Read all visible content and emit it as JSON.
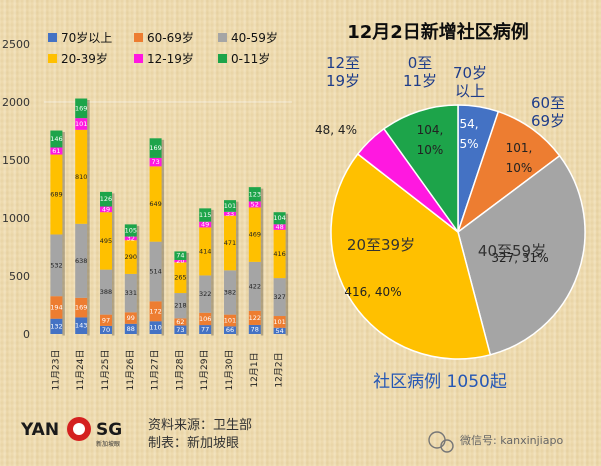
{
  "chart_data": [
    {
      "type": "bar",
      "stacked": true,
      "categories": [
        "11月23日",
        "11月24日",
        "11月25日",
        "11月26日",
        "11月27日",
        "11月28日",
        "11月29日",
        "11月30日",
        "12月1日",
        "12月2日"
      ],
      "ylim": [
        0,
        2500
      ],
      "yticks": [
        0,
        500,
        1000,
        1500,
        2000,
        2500
      ],
      "grid": false,
      "legend_position": "top",
      "series": [
        {
          "name": "0-11岁",
          "color": "#1da44a",
          "values": [
            146,
            169,
            126,
            105,
            169,
            74,
            115,
            101,
            123,
            104
          ]
        },
        {
          "name": "12-19岁",
          "color": "#ff18e0",
          "values": [
            61,
            101,
            49,
            32,
            73,
            20,
            49,
            33,
            52,
            48
          ]
        },
        {
          "name": "20-39岁",
          "color": "#ffc000",
          "values": [
            689,
            810,
            495,
            290,
            649,
            265,
            414,
            471,
            469,
            416
          ]
        },
        {
          "name": "40-59岁",
          "color": "#a5a5a5",
          "values": [
            532,
            638,
            388,
            331,
            514,
            218,
            322,
            382,
            422,
            327
          ]
        },
        {
          "name": "60-69岁",
          "color": "#ed7d31",
          "values": [
            194,
            169,
            97,
            99,
            172,
            62,
            106,
            101,
            122,
            101
          ]
        },
        {
          "name": "70岁以上",
          "color": "#4472c4",
          "values": [
            132,
            143,
            70,
            88,
            110,
            73,
            77,
            66,
            78,
            54
          ]
        }
      ],
      "legend_order": [
        "70岁以上",
        "60-69岁",
        "40-59岁",
        "20-39岁",
        "12-19岁",
        "0-11岁"
      ]
    },
    {
      "type": "pie",
      "title": "12月2日新增社区病例",
      "slices": [
        {
          "name": "70岁以上",
          "label_lines": [
            "70岁",
            "以上"
          ],
          "value": 54,
          "percent": "5%",
          "color": "#4472c4"
        },
        {
          "name": "60至69岁",
          "label_lines": [
            "60至",
            "69岁"
          ],
          "value": 101,
          "percent": "10%",
          "color": "#ed7d31"
        },
        {
          "name": "40至59岁",
          "label_lines": [
            "40至59岁"
          ],
          "value": 327,
          "percent": "31%",
          "color": "#a5a5a5"
        },
        {
          "name": "20至39岁",
          "label_lines": [
            "20至39岁"
          ],
          "value": 416,
          "percent": "40%",
          "color": "#ffc000"
        },
        {
          "name": "12至19岁",
          "label_lines": [
            "12至",
            "19岁"
          ],
          "value": 48,
          "percent": "4%",
          "color": "#ff18e0"
        },
        {
          "name": "0至11岁",
          "label_lines": [
            "0至",
            "11岁"
          ],
          "value": 104,
          "percent": "10%",
          "color": "#1da44a"
        }
      ],
      "total_caption": "社区病例 1050起"
    }
  ],
  "footer": {
    "source": "资料来源：卫生部",
    "made_by": "制表：新加坡眼",
    "logo_left": "YAN",
    "logo_right": "SG",
    "logo_small": "新加坡眼",
    "wechat": "微信号: kanxinjiapo"
  },
  "colors": {
    "title_text": "#0d0d0d",
    "pie_text": "#1f3d8a",
    "caption_text": "#2557b5"
  }
}
